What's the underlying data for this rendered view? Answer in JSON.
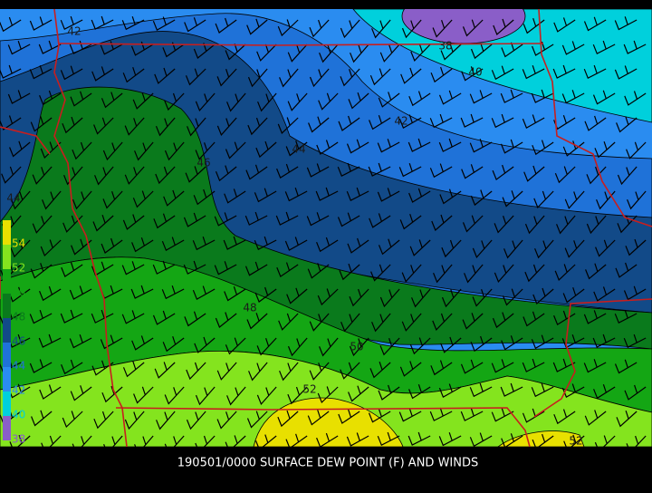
{
  "title": "190501/0000 SURFACE DEW POINT (F) AND WINDS",
  "legend": [
    "54",
    "52",
    "50",
    "48",
    "46",
    "44",
    "42",
    "40",
    "38"
  ],
  "contour_labels": [
    "42",
    "38",
    "40",
    "42",
    "44",
    "46",
    "44",
    "48",
    "50",
    "52",
    "52"
  ]
}
